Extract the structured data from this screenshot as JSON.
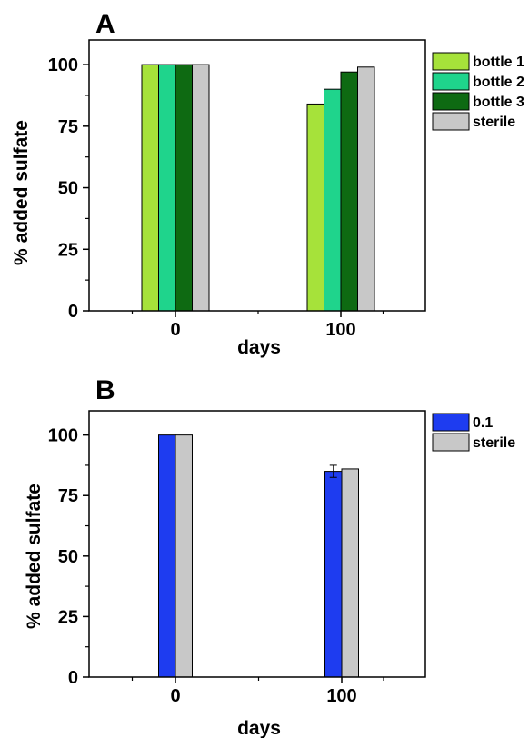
{
  "chart_data": [
    {
      "panel_label": "A",
      "type": "bar",
      "xlabel": "days",
      "ylabel": "% added sulfate",
      "categories": [
        "0",
        "100"
      ],
      "ylim": [
        0,
        110
      ],
      "yticks": [
        "0",
        "25",
        "50",
        "75",
        "100"
      ],
      "legend_position": "right",
      "series": [
        {
          "name": "bottle 1",
          "color": "#a6e23a",
          "values": [
            100,
            84
          ]
        },
        {
          "name": "bottle 2",
          "color": "#1fd48c",
          "values": [
            100,
            90
          ]
        },
        {
          "name": "bottle 3",
          "color": "#0e6a12",
          "values": [
            100,
            97
          ]
        },
        {
          "name": "sterile",
          "color": "#c8c8c8",
          "values": [
            100,
            99
          ]
        }
      ]
    },
    {
      "panel_label": "B",
      "type": "bar",
      "xlabel": "days",
      "ylabel": "% added sulfate",
      "categories": [
        "0",
        "100"
      ],
      "ylim": [
        0,
        110
      ],
      "yticks": [
        "0",
        "25",
        "50",
        "75",
        "100"
      ],
      "legend_position": "right",
      "series": [
        {
          "name": "0.1",
          "color": "#1e3cf0",
          "values": [
            100,
            85
          ],
          "errors": [
            0,
            2.5
          ]
        },
        {
          "name": "sterile",
          "color": "#c8c8c8",
          "values": [
            100,
            86
          ]
        }
      ]
    }
  ]
}
